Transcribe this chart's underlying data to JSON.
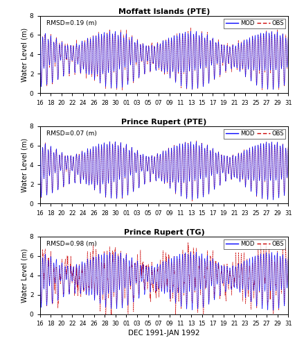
{
  "panels": [
    {
      "title": "Moffatt Islands (PTE)",
      "rmsd": "RMSD=0.19 (m)",
      "ylim": [
        0,
        8
      ],
      "yticks": [
        0,
        2,
        4,
        6,
        8
      ],
      "mean_level": 3.8,
      "spring_amp": 2.5,
      "neap_amp": 1.0,
      "obs_noise": 0.18,
      "mod_color": "#0000FF",
      "obs_color": "#CC0000"
    },
    {
      "title": "Prince Rupert (PTE)",
      "rmsd": "RMSD=0.07 (m)",
      "ylim": [
        0,
        8
      ],
      "yticks": [
        0,
        2,
        4,
        6,
        8
      ],
      "mean_level": 3.8,
      "spring_amp": 2.5,
      "neap_amp": 1.0,
      "obs_noise": 0.06,
      "mod_color": "#0000FF",
      "obs_color": "#CC0000"
    },
    {
      "title": "Prince Rupert (TG)",
      "rmsd": "RMSD=0.98 (m)",
      "ylim": [
        0,
        8
      ],
      "yticks": [
        0,
        2,
        4,
        6,
        8
      ],
      "mean_level": 3.8,
      "spring_amp": 2.5,
      "neap_amp": 1.0,
      "obs_noise": 0.98,
      "mod_color": "#0000FF",
      "obs_color": "#CC0000"
    }
  ],
  "xlabel": "DEC 1991-JAN 1992",
  "ylabel": "Water Level (m)",
  "xtick_labels": [
    "16",
    "18",
    "20",
    "22",
    "24",
    "26",
    "28",
    "30",
    "01",
    "03",
    "05",
    "07",
    "09",
    "11",
    "13",
    "15",
    "17",
    "19",
    "21",
    "23",
    "25",
    "27",
    "29",
    "31"
  ],
  "figsize": [
    4.27,
    5.0
  ],
  "dpi": 100
}
